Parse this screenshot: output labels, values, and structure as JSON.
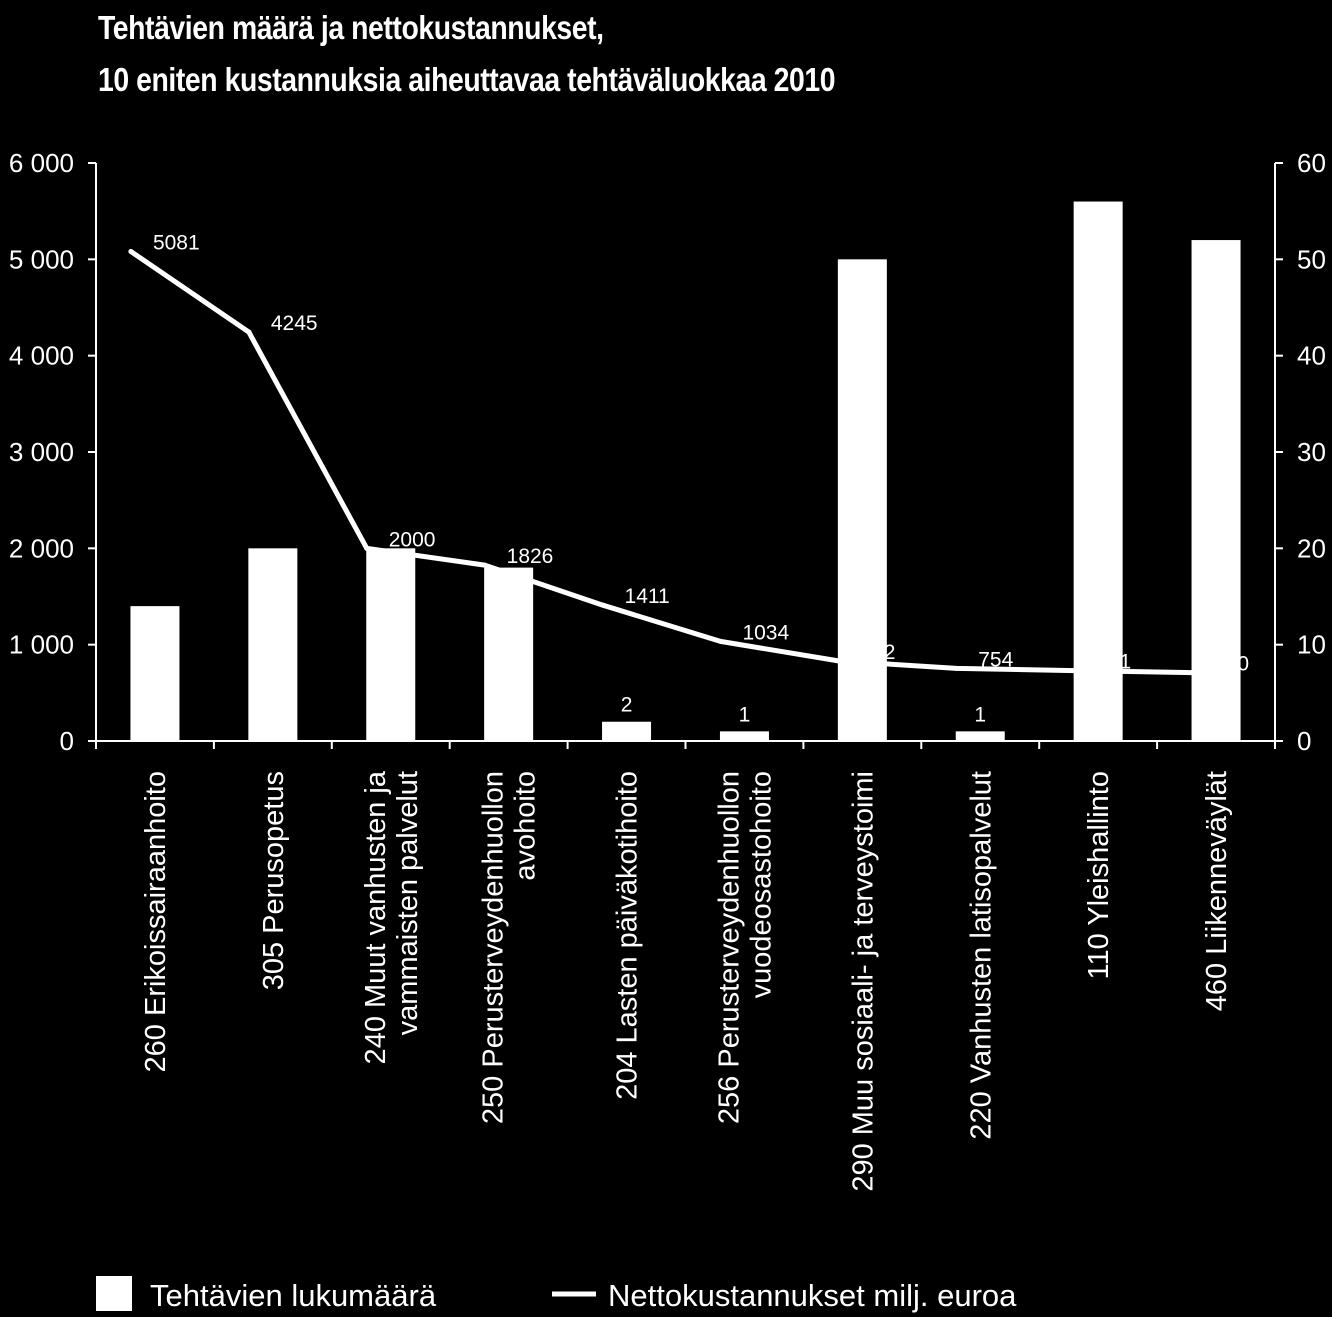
{
  "chart_data": {
    "type": "bar",
    "title_lines": [
      "Tehtävien määrä ja nettokustannukset,",
      "10 eniten kustannuksia aiheuttavaa tehtäväluokkaa 2010"
    ],
    "categories": [
      [
        "260 Erikoissairaanhoito"
      ],
      [
        "305 Perusopetus"
      ],
      [
        "240 Muut vanhusten ja",
        "vammaisten palvelut"
      ],
      [
        "250 Perusterveydenhuollon",
        "avohoito"
      ],
      [
        "204 Lasten päiväkotihoito"
      ],
      [
        "256 Perusterveydenhuollon",
        "vuodeosastohoito"
      ],
      [
        "290 Muu sosiaali- ja terveystoimi"
      ],
      [
        "220 Vanhusten latisopalvelut"
      ],
      [
        "110 Yleishallinto"
      ],
      [
        "460 Liikenneväylät"
      ]
    ],
    "series": [
      {
        "name": "Tehtävien lukumäärä",
        "type": "bar",
        "axis": "left",
        "values": [
          1400,
          2000,
          2000,
          1800,
          200,
          100,
          5000,
          100,
          5600,
          5200
        ],
        "labels": [
          "",
          "",
          "",
          "",
          "2",
          "1",
          "",
          "1",
          "",
          ""
        ],
        "color": "#ffffff"
      },
      {
        "name": "Nettokustannukset milj. euroa",
        "type": "line",
        "axis": "right",
        "values": [
          50.81,
          42.45,
          20.0,
          18.26,
          14.11,
          10.34,
          8.32,
          7.54,
          7.31,
          7.1
        ],
        "labels": [
          "5081",
          "4245",
          "2000",
          "1826",
          "1411",
          "1034",
          "832",
          "754",
          "731",
          "710"
        ],
        "color": "#ffffff"
      }
    ],
    "y_left": {
      "min": 0,
      "max": 6000,
      "ticks": [
        0,
        1000,
        2000,
        3000,
        4000,
        5000,
        6000
      ],
      "tick_labels": [
        "0",
        "1 000",
        "2 000",
        "3 000",
        "4 000",
        "5 000",
        "6 000"
      ]
    },
    "y_right": {
      "min": 0,
      "max": 60,
      "ticks": [
        0,
        10,
        20,
        30,
        40,
        50,
        60
      ],
      "tick_labels": [
        "0",
        "10",
        "20",
        "30",
        "40",
        "50",
        "60"
      ]
    },
    "grid": false,
    "legend": {
      "position": "bottom",
      "items": [
        {
          "label": "Tehtävien lukumäärä",
          "symbol": "square"
        },
        {
          "label": "Nettokustannukset milj. euroa",
          "symbol": "line"
        }
      ]
    },
    "colors": {
      "background": "#000000",
      "foreground": "#ffffff"
    }
  }
}
